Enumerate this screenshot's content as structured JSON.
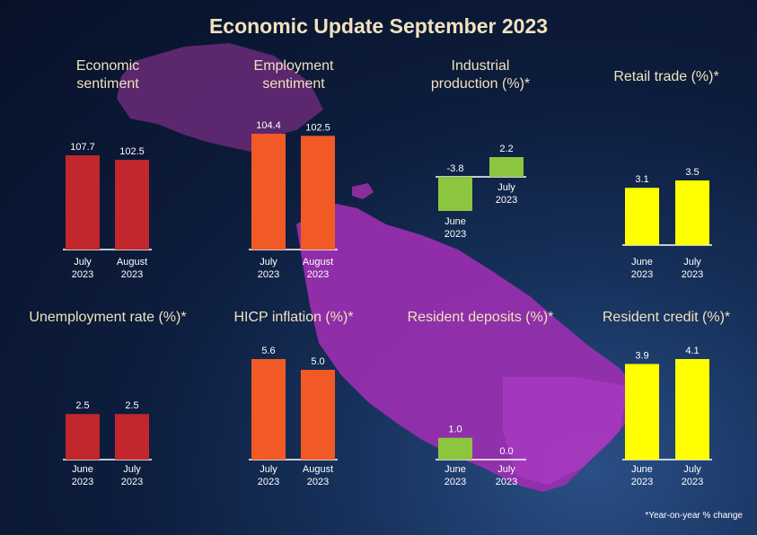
{
  "title": "Economic Update September 2023",
  "footnote": "*Year-on-year % change",
  "colors": {
    "red": "#c1272d",
    "orange": "#f15a24",
    "green": "#8cc63f",
    "yellow": "#ffff00",
    "title_text": "#f0e2bd",
    "map_purple": "#9a2fb0"
  },
  "chart_data": [
    {
      "type": "bar",
      "title": "Economic sentiment",
      "categories": [
        "July 2023",
        "August 2023"
      ],
      "values": [
        107.7,
        102.5
      ],
      "value_labels": [
        "107.7",
        "102.5"
      ],
      "color": "#c1272d",
      "ylim": [
        0,
        107.7
      ]
    },
    {
      "type": "bar",
      "title": "Employment sentiment",
      "categories": [
        "July 2023",
        "August 2023"
      ],
      "values": [
        104.4,
        102.5
      ],
      "value_labels": [
        "104.4",
        "102.5"
      ],
      "color": "#f15a24",
      "ylim": [
        0,
        104.4
      ]
    },
    {
      "type": "bar",
      "title": "Industrial production (%)*",
      "categories": [
        "June 2023",
        "July 2023"
      ],
      "values": [
        -3.8,
        2.2
      ],
      "value_labels": [
        "-3.8",
        "2.2"
      ],
      "color": "#8cc63f",
      "ylim": [
        -3.8,
        2.2
      ]
    },
    {
      "type": "bar",
      "title": "Retail trade (%)*",
      "categories": [
        "June 2023",
        "July 2023"
      ],
      "values": [
        3.1,
        3.5
      ],
      "value_labels": [
        "3.1",
        "3.5"
      ],
      "color": "#ffff00",
      "ylim": [
        0,
        3.5
      ]
    },
    {
      "type": "bar",
      "title": "Unemployment rate (%)*",
      "categories": [
        "June 2023",
        "July 2023"
      ],
      "values": [
        2.5,
        2.5
      ],
      "value_labels": [
        "2.5",
        "2.5"
      ],
      "color": "#c1272d",
      "ylim": [
        0,
        3.2
      ]
    },
    {
      "type": "bar",
      "title": "HICP inflation (%)*",
      "categories": [
        "July 2023",
        "August 2023"
      ],
      "values": [
        5.6,
        5.0
      ],
      "value_labels": [
        "5.6",
        "5.0"
      ],
      "color": "#f15a24",
      "ylim": [
        0,
        5.6
      ]
    },
    {
      "type": "bar",
      "title": "Resident deposits (%)*",
      "categories": [
        "June 2023",
        "July 2023"
      ],
      "values": [
        1.0,
        0.0
      ],
      "value_labels": [
        "1.0",
        "0.0"
      ],
      "color": "#8cc63f",
      "ylim": [
        0,
        2.1
      ]
    },
    {
      "type": "bar",
      "title": "Resident credit (%)*",
      "categories": [
        "June 2023",
        "July 2023"
      ],
      "values": [
        3.9,
        4.1
      ],
      "value_labels": [
        "3.9",
        "4.1"
      ],
      "color": "#ffff00",
      "ylim": [
        0,
        4.1
      ]
    }
  ]
}
